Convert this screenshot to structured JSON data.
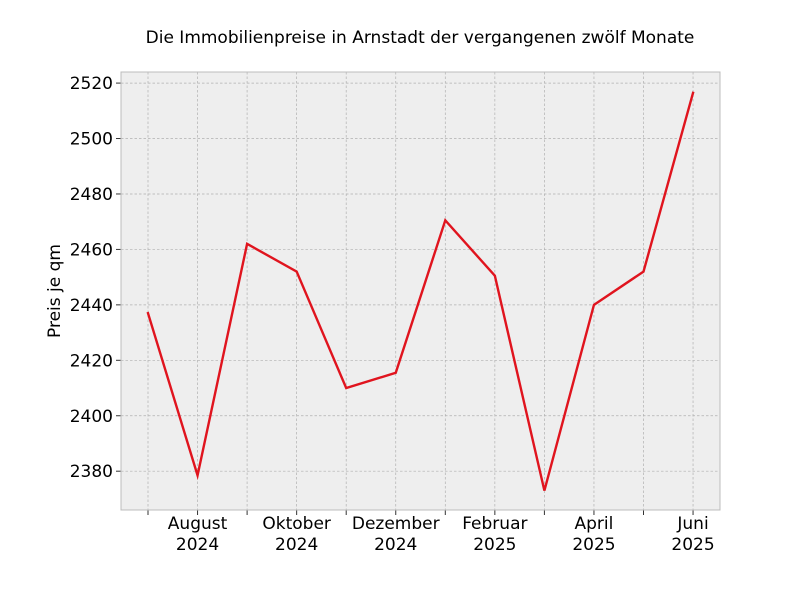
{
  "chart_data": {
    "type": "line",
    "title": "Die Immobilienpreise in Arnstadt der vergangenen zwölf Monate",
    "xlabel": "",
    "ylabel": "Preis je qm",
    "x": [
      "2024-07",
      "2024-08",
      "2024-09",
      "2024-10",
      "2024-11",
      "2024-12",
      "2025-01",
      "2025-02",
      "2025-03",
      "2025-04",
      "2025-05",
      "2025-06"
    ],
    "x_tick_labels": [
      {
        "x": "2024-08",
        "month": "August",
        "year": "2024"
      },
      {
        "x": "2024-10",
        "month": "Oktober",
        "year": "2024"
      },
      {
        "x": "2024-12",
        "month": "Dezember",
        "year": "2024"
      },
      {
        "x": "2025-02",
        "month": "Februar",
        "year": "2025"
      },
      {
        "x": "2025-04",
        "month": "April",
        "year": "2025"
      },
      {
        "x": "2025-06",
        "month": "Juni",
        "year": "2025"
      }
    ],
    "series": [
      {
        "values": [
          2437,
          2378.5,
          2462,
          2452,
          2410,
          2415.5,
          2470.5,
          2450.5,
          2373,
          2440,
          2452,
          2516.5
        ],
        "color": "#e0141e"
      }
    ],
    "ylim": [
      2366,
      2524
    ],
    "yticks": [
      2380,
      2400,
      2420,
      2440,
      2460,
      2480,
      2500,
      2520
    ],
    "grid": true,
    "legend": "none",
    "colors": {
      "plot_background": "#eeeeee",
      "grid": "#b0b0b0",
      "frame": "#bcbcbc"
    }
  }
}
